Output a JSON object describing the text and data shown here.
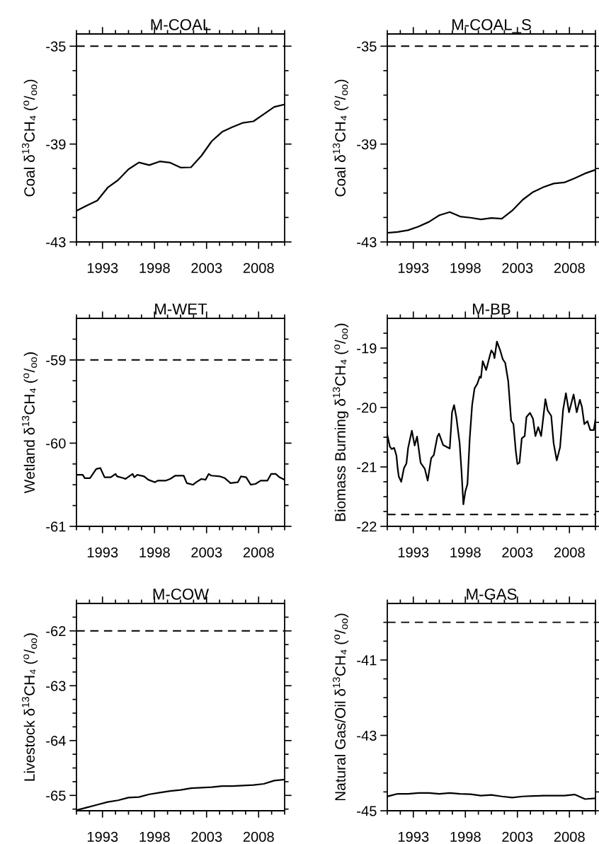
{
  "chart_data": [
    {
      "type": "line",
      "title": "M-COAL",
      "ylabel": "Coal δ$^{13}$CH₄ ($^{o}$/$_{oo}$)",
      "x": [
        1990.5,
        1991.5,
        1992.5,
        1993.5,
        1994.5,
        1995.5,
        1996.5,
        1997.5,
        1998.5,
        1999.5,
        2000.5,
        2001.5,
        2002.5,
        2003.5,
        2004.5,
        2005.5,
        2006.5,
        2007.5,
        2008.5,
        2009.5,
        2010.5
      ],
      "series": [
        {
          "color": "#000000",
          "values": [
            -41.73,
            -41.51,
            -41.31,
            -40.78,
            -40.47,
            -40.03,
            -39.75,
            -39.86,
            -39.71,
            -39.76,
            -39.96,
            -39.95,
            -39.48,
            -38.88,
            -38.5,
            -38.3,
            -38.13,
            -38.07,
            -37.78,
            -37.48,
            -37.38
          ]
        }
      ],
      "xlim": [
        1990.5,
        2010.5
      ],
      "ylim": [
        -43,
        -34.5
      ],
      "xticks": [
        {
          "value": 1990.5,
          "label": null
        },
        {
          "value": 1991.75,
          "label": null
        },
        1993,
        {
          "value": 1994.25,
          "label": null
        },
        {
          "value": 1995.5,
          "label": null
        },
        {
          "value": 1996.75,
          "label": null
        },
        1998,
        {
          "value": 1999.25,
          "label": null
        },
        {
          "value": 2000.5,
          "label": null
        },
        {
          "value": 2001.75,
          "label": null
        },
        2003,
        {
          "value": 2004.25,
          "label": null
        },
        {
          "value": 2005.5,
          "label": null
        },
        {
          "value": 2006.75,
          "label": null
        },
        2008,
        {
          "value": 2009.25,
          "label": null
        },
        {
          "value": 2010.5,
          "label": null
        }
      ],
      "yticks": [
        -43,
        {
          "value": -42,
          "label": null
        },
        {
          "value": -41,
          "label": null
        },
        {
          "value": -40,
          "label": null
        },
        -39,
        {
          "value": -38,
          "label": null
        },
        {
          "value": -37,
          "label": null
        },
        {
          "value": -36,
          "label": null
        },
        -35
      ],
      "ref_lines": [
        {
          "axis": "y",
          "value": -35,
          "color": "#000000",
          "line_style": "dashed"
        }
      ],
      "line_style": "solid",
      "marker": "none"
    },
    {
      "type": "line",
      "title": "M-COAL_S",
      "ylabel": "Coal δ$^{13}$CH₄ ($^{o}$/$_{oo}$)",
      "x": [
        1990.5,
        1991.5,
        1992.5,
        1993.5,
        1994.5,
        1995.5,
        1996.5,
        1997.5,
        1998.5,
        1999.5,
        2000.5,
        2001.5,
        2002.5,
        2003.5,
        2004.5,
        2005.5,
        2006.5,
        2007.5,
        2008.5,
        2009.5,
        2010.5
      ],
      "series": [
        {
          "color": "#000000",
          "values": [
            -42.63,
            -42.59,
            -42.52,
            -42.37,
            -42.18,
            -41.91,
            -41.78,
            -41.96,
            -42.01,
            -42.08,
            -42.02,
            -42.05,
            -41.72,
            -41.28,
            -40.96,
            -40.76,
            -40.61,
            -40.57,
            -40.4,
            -40.2,
            -40.05
          ]
        }
      ],
      "xlim": [
        1990.5,
        2010.5
      ],
      "ylim": [
        -43,
        -34.5
      ],
      "xticks": [
        {
          "value": 1990.5,
          "label": null
        },
        {
          "value": 1991.75,
          "label": null
        },
        1993,
        {
          "value": 1994.25,
          "label": null
        },
        {
          "value": 1995.5,
          "label": null
        },
        {
          "value": 1996.75,
          "label": null
        },
        1998,
        {
          "value": 1999.25,
          "label": null
        },
        {
          "value": 2000.5,
          "label": null
        },
        {
          "value": 2001.75,
          "label": null
        },
        2003,
        {
          "value": 2004.25,
          "label": null
        },
        {
          "value": 2005.5,
          "label": null
        },
        {
          "value": 2006.75,
          "label": null
        },
        2008,
        {
          "value": 2009.25,
          "label": null
        },
        {
          "value": 2010.5,
          "label": null
        }
      ],
      "yticks": [
        -43,
        {
          "value": -42,
          "label": null
        },
        {
          "value": -41,
          "label": null
        },
        {
          "value": -40,
          "label": null
        },
        -39,
        {
          "value": -38,
          "label": null
        },
        {
          "value": -37,
          "label": null
        },
        {
          "value": -36,
          "label": null
        },
        -35
      ],
      "ref_lines": [
        {
          "axis": "y",
          "value": -35,
          "color": "#000000",
          "line_style": "dashed"
        }
      ],
      "line_style": "solid",
      "marker": "none"
    },
    {
      "type": "line",
      "title": "M-WET",
      "ylabel": "Wetland δ$^{13}$CH₄ ($^{o}$/$_{oo}$)",
      "x": [
        1990.5,
        1991.1,
        1991.3,
        1991.8,
        1992.4,
        1992.8,
        1993.2,
        1993.8,
        1994.25,
        1994.4,
        1995.0,
        1995.2,
        1995.55,
        1995.9,
        1996.05,
        1996.35,
        1997.0,
        1997.4,
        1998.05,
        1998.3,
        1999.1,
        1999.5,
        2000.0,
        2000.8,
        2001.1,
        2001.7,
        2002.0,
        2002.5,
        2002.9,
        2003.2,
        2003.45,
        2004.3,
        2004.75,
        2005.3,
        2006.0,
        2006.3,
        2006.8,
        2007.25,
        2007.7,
        2008.2,
        2008.85,
        2009.2,
        2009.65,
        2010.0,
        2010.5
      ],
      "series": [
        {
          "color": "#000000",
          "values": [
            -60.38,
            -60.38,
            -60.42,
            -60.42,
            -60.31,
            -60.3,
            -60.41,
            -60.41,
            -60.37,
            -60.4,
            -60.42,
            -60.43,
            -60.4,
            -60.37,
            -60.41,
            -60.38,
            -60.4,
            -60.44,
            -60.47,
            -60.45,
            -60.45,
            -60.43,
            -60.39,
            -60.39,
            -60.48,
            -60.5,
            -60.47,
            -60.43,
            -60.44,
            -60.37,
            -60.39,
            -60.4,
            -60.42,
            -60.48,
            -60.47,
            -60.4,
            -60.41,
            -60.5,
            -60.49,
            -60.45,
            -60.45,
            -60.37,
            -60.37,
            -60.41,
            -60.44
          ]
        }
      ],
      "xlim": [
        1990.5,
        2010.5
      ],
      "ylim": [
        -61,
        -58.5
      ],
      "xticks": [
        {
          "value": 1990.5,
          "label": null
        },
        {
          "value": 1991.75,
          "label": null
        },
        1993,
        {
          "value": 1994.25,
          "label": null
        },
        {
          "value": 1995.5,
          "label": null
        },
        {
          "value": 1996.75,
          "label": null
        },
        1998,
        {
          "value": 1999.25,
          "label": null
        },
        {
          "value": 2000.5,
          "label": null
        },
        {
          "value": 2001.75,
          "label": null
        },
        2003,
        {
          "value": 2004.25,
          "label": null
        },
        {
          "value": 2005.5,
          "label": null
        },
        {
          "value": 2006.75,
          "label": null
        },
        2008,
        {
          "value": 2009.25,
          "label": null
        },
        {
          "value": 2010.5,
          "label": null
        }
      ],
      "yticks": [
        -61,
        {
          "value": -60.75,
          "label": null
        },
        {
          "value": -60.5,
          "label": null
        },
        {
          "value": -60.25,
          "label": null
        },
        -60,
        {
          "value": -59.75,
          "label": null
        },
        {
          "value": -59.5,
          "label": null
        },
        {
          "value": -59.25,
          "label": null
        },
        -59,
        {
          "value": -58.75,
          "label": null
        }
      ],
      "ref_lines": [
        {
          "axis": "y",
          "value": -59,
          "color": "#000000",
          "line_style": "dashed"
        }
      ],
      "line_style": "solid",
      "marker": "none"
    },
    {
      "type": "line",
      "title": "M-BB",
      "ylabel": "Biomass Burning δ$^{13}$CH₄ ($^{o}$/$_{oo}$)",
      "x": [
        1990.5,
        1990.75,
        1990.93,
        1991.16,
        1991.38,
        1991.5,
        1991.6,
        1991.84,
        1992.1,
        1992.34,
        1992.5,
        1992.86,
        1993.13,
        1993.36,
        1993.7,
        1994.1,
        1994.38,
        1994.72,
        1994.97,
        1995.31,
        1995.47,
        1995.86,
        1996.5,
        1996.72,
        1996.92,
        1997.13,
        1997.45,
        1997.63,
        1997.81,
        1998.0,
        1998.2,
        1998.42,
        1998.65,
        1998.88,
        1999.15,
        1999.38,
        1999.5,
        1999.67,
        2000.0,
        2000.35,
        2000.5,
        2000.7,
        2000.8,
        2001.03,
        2001.33,
        2001.6,
        2001.83,
        2002.12,
        2002.4,
        2002.62,
        2002.85,
        2003.0,
        2003.2,
        2003.42,
        2003.7,
        2003.87,
        2004.21,
        2004.5,
        2004.73,
        2005.0,
        2005.28,
        2005.69,
        2005.91,
        2006.25,
        2006.48,
        2006.78,
        2007.1,
        2007.39,
        2007.66,
        2007.96,
        2008.4,
        2008.7,
        2009.0,
        2009.2,
        2009.43,
        2009.73,
        2010.0,
        2010.34,
        2010.5
      ],
      "series": [
        {
          "color": "#000000",
          "values": [
            -20.46,
            -20.66,
            -20.7,
            -20.68,
            -20.81,
            -21.03,
            -21.16,
            -21.25,
            -21.02,
            -20.94,
            -20.68,
            -20.39,
            -20.64,
            -20.49,
            -20.93,
            -21.03,
            -21.23,
            -20.85,
            -20.8,
            -20.49,
            -20.44,
            -20.63,
            -20.69,
            -20.08,
            -19.96,
            -20.16,
            -20.6,
            -21.07,
            -21.63,
            -21.41,
            -21.29,
            -20.52,
            -19.96,
            -19.68,
            -19.6,
            -19.48,
            -19.5,
            -19.22,
            -19.37,
            -19.13,
            -19.04,
            -19.09,
            -19.17,
            -18.89,
            -19.03,
            -19.19,
            -19.25,
            -19.56,
            -20.22,
            -20.28,
            -20.74,
            -20.95,
            -20.93,
            -20.52,
            -20.48,
            -20.16,
            -20.09,
            -20.19,
            -20.48,
            -20.33,
            -20.48,
            -19.86,
            -20.05,
            -20.14,
            -20.6,
            -20.89,
            -20.67,
            -20.04,
            -19.76,
            -20.08,
            -19.78,
            -20.08,
            -19.87,
            -19.99,
            -20.28,
            -20.23,
            -20.38,
            -20.38,
            -20.2
          ]
        }
      ],
      "xlim": [
        1990.5,
        2010.5
      ],
      "ylim": [
        -22,
        -18.5
      ],
      "xticks": [
        {
          "value": 1990.5,
          "label": null
        },
        {
          "value": 1991.75,
          "label": null
        },
        1993,
        {
          "value": 1994.25,
          "label": null
        },
        {
          "value": 1995.5,
          "label": null
        },
        {
          "value": 1996.75,
          "label": null
        },
        1998,
        {
          "value": 1999.25,
          "label": null
        },
        {
          "value": 2000.5,
          "label": null
        },
        {
          "value": 2001.75,
          "label": null
        },
        2003,
        {
          "value": 2004.25,
          "label": null
        },
        {
          "value": 2005.5,
          "label": null
        },
        {
          "value": 2006.75,
          "label": null
        },
        2008,
        {
          "value": 2009.25,
          "label": null
        },
        {
          "value": 2010.5,
          "label": null
        }
      ],
      "yticks": [
        -22,
        {
          "value": -21.75,
          "label": null
        },
        {
          "value": -21.5,
          "label": null
        },
        {
          "value": -21.25,
          "label": null
        },
        -21,
        {
          "value": -20.75,
          "label": null
        },
        {
          "value": -20.5,
          "label": null
        },
        {
          "value": -20.25,
          "label": null
        },
        -20,
        {
          "value": -19.75,
          "label": null
        },
        {
          "value": -19.5,
          "label": null
        },
        {
          "value": -19.25,
          "label": null
        },
        -19,
        {
          "value": -18.75,
          "label": null
        }
      ],
      "ref_lines": [
        {
          "axis": "y",
          "value": -21.8,
          "color": "#000000",
          "line_style": "dashed"
        }
      ],
      "line_style": "solid",
      "marker": "none"
    },
    {
      "type": "line",
      "title": "M-COW",
      "ylabel": "Livestock δ$^{13}$CH₄ ($^{o}$/$_{oo}$)",
      "x": [
        1990.5,
        1991.5,
        1992.5,
        1993.5,
        1994.5,
        1995.5,
        1996.5,
        1997.5,
        1998.5,
        1999.5,
        2000.5,
        2001.5,
        2002.5,
        2003.5,
        2004.5,
        2005.5,
        2006.5,
        2007.5,
        2008.5,
        2009.5,
        2010.5
      ],
      "series": [
        {
          "color": "#000000",
          "values": [
            -65.27,
            -65.22,
            -65.17,
            -65.12,
            -65.09,
            -65.04,
            -65.03,
            -64.98,
            -64.95,
            -64.92,
            -64.9,
            -64.87,
            -64.86,
            -64.85,
            -64.83,
            -64.83,
            -64.82,
            -64.81,
            -64.79,
            -64.73,
            -64.71
          ]
        }
      ],
      "xlim": [
        1990.5,
        2010.5
      ],
      "ylim": [
        -65.28,
        -61.5
      ],
      "xticks": [
        {
          "value": 1990.5,
          "label": null
        },
        {
          "value": 1991.75,
          "label": null
        },
        1993,
        {
          "value": 1994.25,
          "label": null
        },
        {
          "value": 1995.5,
          "label": null
        },
        {
          "value": 1996.75,
          "label": null
        },
        1998,
        {
          "value": 1999.25,
          "label": null
        },
        {
          "value": 2000.5,
          "label": null
        },
        {
          "value": 2001.75,
          "label": null
        },
        2003,
        {
          "value": 2004.25,
          "label": null
        },
        {
          "value": 2005.5,
          "label": null
        },
        {
          "value": 2006.75,
          "label": null
        },
        2008,
        {
          "value": 2009.25,
          "label": null
        },
        {
          "value": 2010.5,
          "label": null
        }
      ],
      "yticks": [
        {
          "value": -65.25,
          "label": null
        },
        -65,
        {
          "value": -64.75,
          "label": null
        },
        {
          "value": -64.5,
          "label": null
        },
        {
          "value": -64.25,
          "label": null
        },
        -64,
        {
          "value": -63.75,
          "label": null
        },
        {
          "value": -63.5,
          "label": null
        },
        {
          "value": -63.25,
          "label": null
        },
        -63,
        {
          "value": -62.75,
          "label": null
        },
        {
          "value": -62.5,
          "label": null
        },
        {
          "value": -62.25,
          "label": null
        },
        -62,
        {
          "value": -61.75,
          "label": null
        }
      ],
      "ref_lines": [
        {
          "axis": "y",
          "value": -62,
          "color": "#000000",
          "line_style": "dashed"
        }
      ],
      "line_style": "solid",
      "marker": "none"
    },
    {
      "type": "line",
      "title": "M-GAS",
      "ylabel": "Natural Gas/Oil δ$^{13}$CH₄ ($^{o}$/$_{oo}$)",
      "x": [
        1990.5,
        1991.5,
        1992.5,
        1993.5,
        1994.5,
        1995.5,
        1996.5,
        1997.5,
        1998.5,
        1999.5,
        2000.5,
        2001.5,
        2002.5,
        2003.5,
        2004.5,
        2005.5,
        2006.5,
        2007.5,
        2008.5,
        2009.5,
        2010.5
      ],
      "series": [
        {
          "color": "#000000",
          "values": [
            -44.62,
            -44.55,
            -44.55,
            -44.53,
            -44.53,
            -44.55,
            -44.53,
            -44.55,
            -44.56,
            -44.6,
            -44.58,
            -44.62,
            -44.65,
            -44.62,
            -44.61,
            -44.6,
            -44.6,
            -44.6,
            -44.57,
            -44.69,
            -44.67
          ]
        }
      ],
      "xlim": [
        1990.5,
        2010.5
      ],
      "ylim": [
        -45,
        -39.5
      ],
      "xticks": [
        {
          "value": 1990.5,
          "label": null
        },
        {
          "value": 1991.75,
          "label": null
        },
        1993,
        {
          "value": 1994.25,
          "label": null
        },
        {
          "value": 1995.5,
          "label": null
        },
        {
          "value": 1996.75,
          "label": null
        },
        1998,
        {
          "value": 1999.25,
          "label": null
        },
        {
          "value": 2000.5,
          "label": null
        },
        {
          "value": 2001.75,
          "label": null
        },
        2003,
        {
          "value": 2004.25,
          "label": null
        },
        {
          "value": 2005.5,
          "label": null
        },
        {
          "value": 2006.75,
          "label": null
        },
        2008,
        {
          "value": 2009.25,
          "label": null
        },
        {
          "value": 2010.5,
          "label": null
        }
      ],
      "yticks": [
        -45,
        {
          "value": -44.5,
          "label": null
        },
        {
          "value": -44,
          "label": null
        },
        {
          "value": -43.5,
          "label": null
        },
        -43,
        {
          "value": -42.5,
          "label": null
        },
        {
          "value": -42,
          "label": null
        },
        {
          "value": -41.5,
          "label": null
        },
        -41,
        {
          "value": -40.5,
          "label": null
        },
        {
          "value": -40,
          "label": null
        }
      ],
      "ref_lines": [
        {
          "axis": "y",
          "value": -40,
          "color": "#000000",
          "line_style": "dashed"
        }
      ],
      "line_style": "solid",
      "marker": "none"
    }
  ]
}
